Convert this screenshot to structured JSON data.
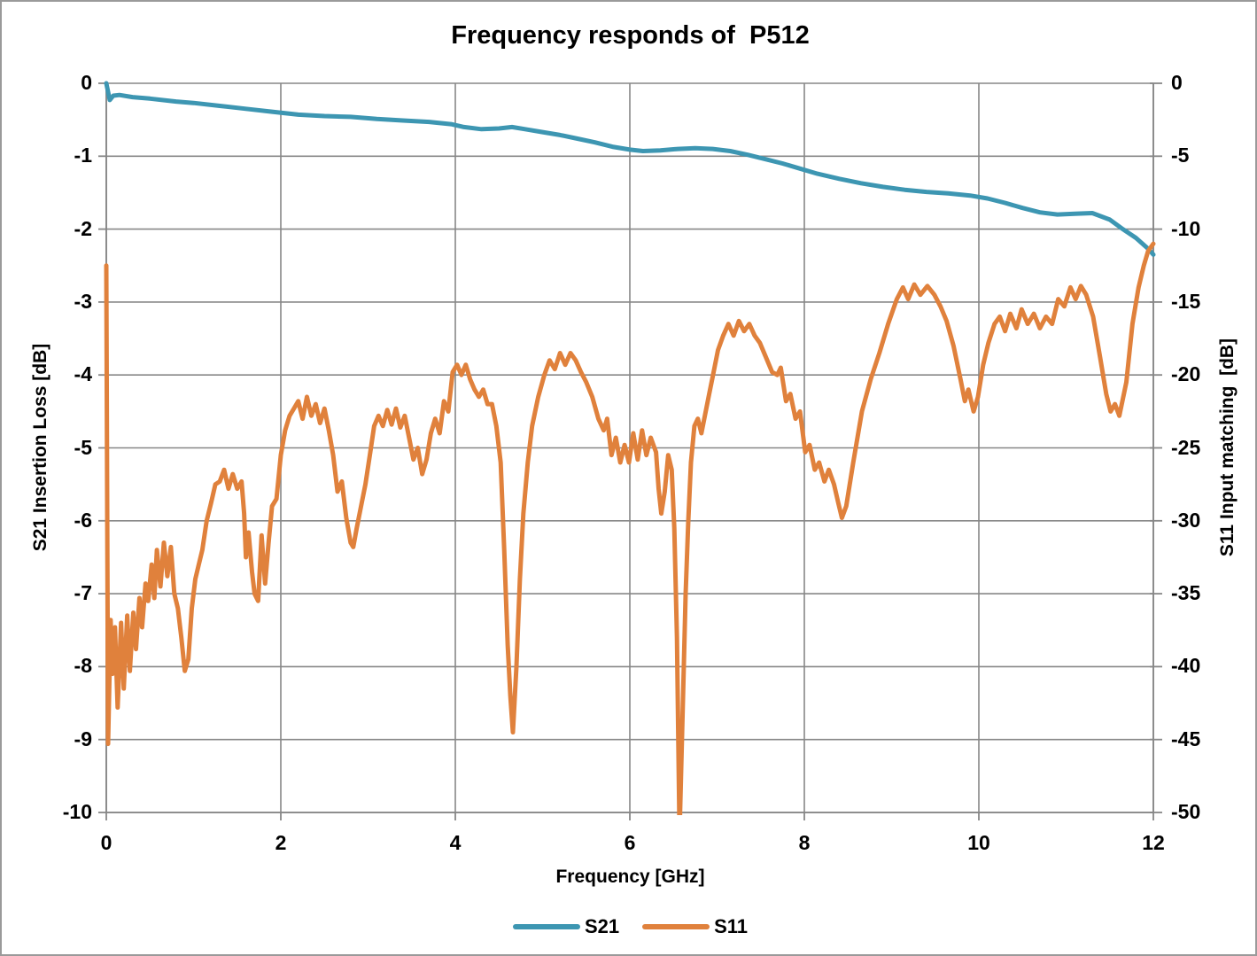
{
  "chart": {
    "title": "Frequency responds of  P512",
    "x_axis_title": "Frequency [GHz]",
    "y_left_title": "S21 Insertion Loss [dB]",
    "y_right_title": "S11 Input matching  [dB]"
  },
  "colors": {
    "grid": "#878787",
    "axis": "#878787",
    "background": "#ffffff",
    "text": "#000000",
    "s21": "#3d96b2",
    "s11": "#e0813c"
  },
  "chart_data": {
    "type": "line",
    "title": "Frequency responds of  P512",
    "xlabel": "Frequency [GHz]",
    "ylabel_left": "S21 Insertion Loss [dB]",
    "ylabel_right": "S11 Input matching  [dB]",
    "grid": true,
    "legend_position": "bottom",
    "x_range": [
      0,
      12
    ],
    "x_ticks": [
      0,
      2,
      4,
      6,
      8,
      10,
      12
    ],
    "y_left_range": [
      -10,
      0
    ],
    "y_left_ticks": [
      0,
      -1,
      -2,
      -3,
      -4,
      -5,
      -6,
      -7,
      -8,
      -9,
      -10
    ],
    "y_right_range": [
      -50,
      0
    ],
    "y_right_ticks": [
      0,
      -5,
      -10,
      -15,
      -20,
      -25,
      -30,
      -35,
      -40,
      -45,
      -50
    ],
    "series": [
      {
        "name": "S21",
        "axis": "left",
        "color": "#3d96b2",
        "points": [
          [
            0.0,
            0.0
          ],
          [
            0.04,
            -0.23
          ],
          [
            0.08,
            -0.17
          ],
          [
            0.15,
            -0.16
          ],
          [
            0.3,
            -0.19
          ],
          [
            0.5,
            -0.21
          ],
          [
            0.8,
            -0.25
          ],
          [
            1.0,
            -0.27
          ],
          [
            1.3,
            -0.31
          ],
          [
            1.6,
            -0.35
          ],
          [
            1.9,
            -0.39
          ],
          [
            2.2,
            -0.43
          ],
          [
            2.5,
            -0.45
          ],
          [
            2.8,
            -0.46
          ],
          [
            3.1,
            -0.49
          ],
          [
            3.4,
            -0.51
          ],
          [
            3.7,
            -0.53
          ],
          [
            3.95,
            -0.56
          ],
          [
            4.1,
            -0.6
          ],
          [
            4.3,
            -0.63
          ],
          [
            4.5,
            -0.62
          ],
          [
            4.65,
            -0.6
          ],
          [
            4.8,
            -0.63
          ],
          [
            5.0,
            -0.67
          ],
          [
            5.2,
            -0.71
          ],
          [
            5.4,
            -0.76
          ],
          [
            5.6,
            -0.81
          ],
          [
            5.8,
            -0.87
          ],
          [
            6.0,
            -0.91
          ],
          [
            6.15,
            -0.93
          ],
          [
            6.35,
            -0.92
          ],
          [
            6.55,
            -0.9
          ],
          [
            6.75,
            -0.89
          ],
          [
            6.95,
            -0.9
          ],
          [
            7.15,
            -0.93
          ],
          [
            7.35,
            -0.98
          ],
          [
            7.55,
            -1.04
          ],
          [
            7.75,
            -1.1
          ],
          [
            7.95,
            -1.17
          ],
          [
            8.15,
            -1.24
          ],
          [
            8.4,
            -1.31
          ],
          [
            8.65,
            -1.37
          ],
          [
            8.9,
            -1.42
          ],
          [
            9.15,
            -1.46
          ],
          [
            9.4,
            -1.49
          ],
          [
            9.65,
            -1.51
          ],
          [
            9.9,
            -1.54
          ],
          [
            10.1,
            -1.58
          ],
          [
            10.3,
            -1.64
          ],
          [
            10.5,
            -1.71
          ],
          [
            10.7,
            -1.77
          ],
          [
            10.9,
            -1.8
          ],
          [
            11.1,
            -1.79
          ],
          [
            11.3,
            -1.78
          ],
          [
            11.5,
            -1.87
          ],
          [
            11.65,
            -2.0
          ],
          [
            11.8,
            -2.12
          ],
          [
            11.95,
            -2.28
          ],
          [
            12.0,
            -2.35
          ]
        ]
      },
      {
        "name": "S11",
        "axis": "right",
        "color": "#e0813c",
        "points": [
          [
            0.0,
            -12.5
          ],
          [
            0.02,
            -45.3
          ],
          [
            0.05,
            -36.8
          ],
          [
            0.07,
            -40.5
          ],
          [
            0.1,
            -37.3
          ],
          [
            0.13,
            -42.8
          ],
          [
            0.17,
            -37.0
          ],
          [
            0.2,
            -41.5
          ],
          [
            0.24,
            -36.5
          ],
          [
            0.27,
            -40.3
          ],
          [
            0.31,
            -36.3
          ],
          [
            0.34,
            -38.8
          ],
          [
            0.38,
            -35.3
          ],
          [
            0.41,
            -37.3
          ],
          [
            0.45,
            -34.3
          ],
          [
            0.48,
            -35.5
          ],
          [
            0.52,
            -33.0
          ],
          [
            0.55,
            -35.3
          ],
          [
            0.58,
            -32.0
          ],
          [
            0.62,
            -34.5
          ],
          [
            0.66,
            -31.5
          ],
          [
            0.7,
            -33.8
          ],
          [
            0.74,
            -31.8
          ],
          [
            0.78,
            -35.0
          ],
          [
            0.82,
            -36.0
          ],
          [
            0.86,
            -38.0
          ],
          [
            0.9,
            -40.3
          ],
          [
            0.94,
            -39.5
          ],
          [
            0.98,
            -36.0
          ],
          [
            1.02,
            -34.0
          ],
          [
            1.06,
            -33.0
          ],
          [
            1.1,
            -32.0
          ],
          [
            1.15,
            -30.0
          ],
          [
            1.2,
            -28.8
          ],
          [
            1.25,
            -27.5
          ],
          [
            1.3,
            -27.3
          ],
          [
            1.35,
            -26.5
          ],
          [
            1.4,
            -27.8
          ],
          [
            1.45,
            -26.8
          ],
          [
            1.5,
            -27.8
          ],
          [
            1.55,
            -27.3
          ],
          [
            1.58,
            -29.5
          ],
          [
            1.6,
            -32.5
          ],
          [
            1.63,
            -30.8
          ],
          [
            1.67,
            -33.5
          ],
          [
            1.7,
            -35.0
          ],
          [
            1.74,
            -35.5
          ],
          [
            1.78,
            -31.0
          ],
          [
            1.82,
            -34.3
          ],
          [
            1.86,
            -31.5
          ],
          [
            1.9,
            -29.0
          ],
          [
            1.95,
            -28.5
          ],
          [
            2.0,
            -25.5
          ],
          [
            2.05,
            -23.8
          ],
          [
            2.1,
            -22.8
          ],
          [
            2.15,
            -22.3
          ],
          [
            2.2,
            -21.8
          ],
          [
            2.25,
            -23.0
          ],
          [
            2.3,
            -21.5
          ],
          [
            2.35,
            -22.8
          ],
          [
            2.4,
            -22.0
          ],
          [
            2.45,
            -23.3
          ],
          [
            2.5,
            -22.3
          ],
          [
            2.55,
            -23.8
          ],
          [
            2.6,
            -25.5
          ],
          [
            2.65,
            -28.0
          ],
          [
            2.7,
            -27.3
          ],
          [
            2.75,
            -29.8
          ],
          [
            2.8,
            -31.5
          ],
          [
            2.83,
            -31.8
          ],
          [
            2.87,
            -30.5
          ],
          [
            2.92,
            -29.0
          ],
          [
            2.97,
            -27.5
          ],
          [
            3.02,
            -25.5
          ],
          [
            3.07,
            -23.5
          ],
          [
            3.12,
            -22.8
          ],
          [
            3.17,
            -23.5
          ],
          [
            3.22,
            -22.4
          ],
          [
            3.27,
            -23.4
          ],
          [
            3.32,
            -22.3
          ],
          [
            3.37,
            -23.6
          ],
          [
            3.42,
            -22.8
          ],
          [
            3.47,
            -24.3
          ],
          [
            3.52,
            -25.8
          ],
          [
            3.57,
            -25.0
          ],
          [
            3.62,
            -26.8
          ],
          [
            3.67,
            -25.8
          ],
          [
            3.72,
            -24.0
          ],
          [
            3.77,
            -23.0
          ],
          [
            3.82,
            -24.0
          ],
          [
            3.87,
            -21.8
          ],
          [
            3.92,
            -22.5
          ],
          [
            3.97,
            -19.8
          ],
          [
            4.02,
            -19.3
          ],
          [
            4.07,
            -20.0
          ],
          [
            4.12,
            -19.3
          ],
          [
            4.17,
            -20.3
          ],
          [
            4.22,
            -21.0
          ],
          [
            4.27,
            -21.5
          ],
          [
            4.32,
            -21.0
          ],
          [
            4.37,
            -22.0
          ],
          [
            4.42,
            -22.0
          ],
          [
            4.47,
            -23.5
          ],
          [
            4.52,
            -26.0
          ],
          [
            4.56,
            -32.0
          ],
          [
            4.6,
            -38.5
          ],
          [
            4.63,
            -42.0
          ],
          [
            4.66,
            -44.5
          ],
          [
            4.7,
            -40.0
          ],
          [
            4.74,
            -34.0
          ],
          [
            4.78,
            -29.5
          ],
          [
            4.83,
            -26.0
          ],
          [
            4.88,
            -23.5
          ],
          [
            4.95,
            -21.5
          ],
          [
            5.02,
            -20.0
          ],
          [
            5.08,
            -19.0
          ],
          [
            5.14,
            -19.6
          ],
          [
            5.2,
            -18.5
          ],
          [
            5.26,
            -19.3
          ],
          [
            5.32,
            -18.5
          ],
          [
            5.38,
            -19.0
          ],
          [
            5.44,
            -19.8
          ],
          [
            5.5,
            -20.5
          ],
          [
            5.57,
            -21.5
          ],
          [
            5.64,
            -23.0
          ],
          [
            5.7,
            -23.8
          ],
          [
            5.74,
            -23.0
          ],
          [
            5.79,
            -25.5
          ],
          [
            5.84,
            -24.3
          ],
          [
            5.89,
            -26.0
          ],
          [
            5.94,
            -24.8
          ],
          [
            5.99,
            -26.0
          ],
          [
            6.04,
            -24.0
          ],
          [
            6.09,
            -25.8
          ],
          [
            6.14,
            -23.8
          ],
          [
            6.19,
            -25.5
          ],
          [
            6.24,
            -24.3
          ],
          [
            6.3,
            -25.3
          ],
          [
            6.33,
            -27.8
          ],
          [
            6.36,
            -29.5
          ],
          [
            6.4,
            -28.0
          ],
          [
            6.44,
            -25.5
          ],
          [
            6.48,
            -26.5
          ],
          [
            6.51,
            -30.5
          ],
          [
            6.54,
            -38.0
          ],
          [
            6.57,
            -51.5
          ],
          [
            6.61,
            -42.0
          ],
          [
            6.64,
            -35.0
          ],
          [
            6.67,
            -30.0
          ],
          [
            6.7,
            -26.0
          ],
          [
            6.74,
            -23.5
          ],
          [
            6.78,
            -23.0
          ],
          [
            6.82,
            -24.0
          ],
          [
            6.86,
            -22.8
          ],
          [
            6.91,
            -21.3
          ],
          [
            6.96,
            -19.8
          ],
          [
            7.01,
            -18.3
          ],
          [
            7.07,
            -17.3
          ],
          [
            7.13,
            -16.5
          ],
          [
            7.19,
            -17.3
          ],
          [
            7.25,
            -16.3
          ],
          [
            7.31,
            -17.0
          ],
          [
            7.37,
            -16.5
          ],
          [
            7.43,
            -17.3
          ],
          [
            7.49,
            -17.8
          ],
          [
            7.56,
            -18.8
          ],
          [
            7.63,
            -19.8
          ],
          [
            7.69,
            -20.0
          ],
          [
            7.73,
            -19.5
          ],
          [
            7.79,
            -21.8
          ],
          [
            7.84,
            -21.3
          ],
          [
            7.9,
            -23.0
          ],
          [
            7.95,
            -22.5
          ],
          [
            8.01,
            -25.3
          ],
          [
            8.06,
            -24.8
          ],
          [
            8.12,
            -26.5
          ],
          [
            8.17,
            -26.0
          ],
          [
            8.23,
            -27.3
          ],
          [
            8.28,
            -26.5
          ],
          [
            8.34,
            -27.5
          ],
          [
            8.39,
            -28.8
          ],
          [
            8.43,
            -29.8
          ],
          [
            8.48,
            -29.0
          ],
          [
            8.56,
            -26.0
          ],
          [
            8.66,
            -22.5
          ],
          [
            8.76,
            -20.3
          ],
          [
            8.86,
            -18.5
          ],
          [
            8.96,
            -16.5
          ],
          [
            9.06,
            -14.8
          ],
          [
            9.13,
            -14.0
          ],
          [
            9.19,
            -14.8
          ],
          [
            9.26,
            -13.8
          ],
          [
            9.33,
            -14.5
          ],
          [
            9.41,
            -13.9
          ],
          [
            9.49,
            -14.5
          ],
          [
            9.56,
            -15.3
          ],
          [
            9.63,
            -16.3
          ],
          [
            9.71,
            -18.0
          ],
          [
            9.79,
            -20.3
          ],
          [
            9.84,
            -21.8
          ],
          [
            9.88,
            -21.0
          ],
          [
            9.94,
            -22.5
          ],
          [
            9.99,
            -21.5
          ],
          [
            10.05,
            -19.3
          ],
          [
            10.11,
            -17.8
          ],
          [
            10.18,
            -16.5
          ],
          [
            10.24,
            -16.0
          ],
          [
            10.3,
            -17.0
          ],
          [
            10.36,
            -15.8
          ],
          [
            10.43,
            -16.8
          ],
          [
            10.49,
            -15.5
          ],
          [
            10.56,
            -16.5
          ],
          [
            10.63,
            -15.8
          ],
          [
            10.7,
            -16.8
          ],
          [
            10.77,
            -16.0
          ],
          [
            10.84,
            -16.5
          ],
          [
            10.91,
            -14.8
          ],
          [
            10.98,
            -15.3
          ],
          [
            11.05,
            -14.0
          ],
          [
            11.11,
            -14.8
          ],
          [
            11.17,
            -13.9
          ],
          [
            11.23,
            -14.5
          ],
          [
            11.31,
            -16.0
          ],
          [
            11.39,
            -18.8
          ],
          [
            11.46,
            -21.3
          ],
          [
            11.51,
            -22.5
          ],
          [
            11.56,
            -22.0
          ],
          [
            11.61,
            -22.8
          ],
          [
            11.69,
            -20.5
          ],
          [
            11.76,
            -16.5
          ],
          [
            11.83,
            -14.0
          ],
          [
            11.89,
            -12.5
          ],
          [
            11.94,
            -11.5
          ],
          [
            12.0,
            -11.0
          ]
        ]
      }
    ]
  }
}
